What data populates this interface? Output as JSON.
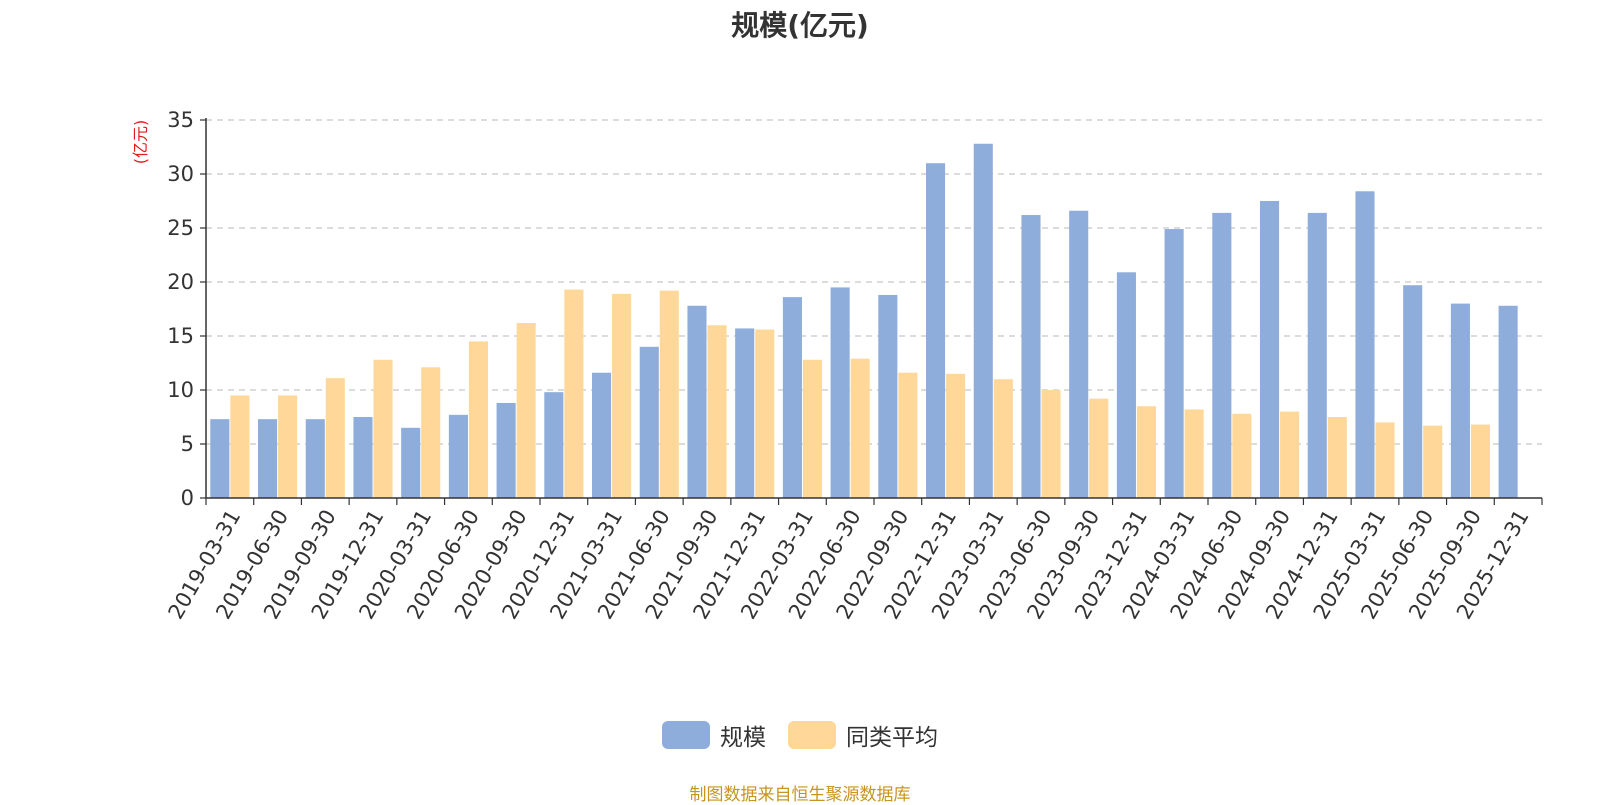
{
  "chart_data": {
    "type": "bar",
    "title": "规模(亿元)",
    "ylabel": "(亿元)",
    "xlabel": "",
    "ylim": [
      0,
      35
    ],
    "yticks": [
      0,
      5,
      10,
      15,
      20,
      25,
      30,
      35
    ],
    "grid": true,
    "legend_position": "bottom",
    "categories": [
      "2019-03-31",
      "2019-06-30",
      "2019-09-30",
      "2019-12-31",
      "2020-03-31",
      "2020-06-30",
      "2020-09-30",
      "2020-12-31",
      "2021-03-31",
      "2021-06-30",
      "2021-09-30",
      "2021-12-31",
      "2022-03-31",
      "2022-06-30",
      "2022-09-30",
      "2022-12-31",
      "2023-03-31",
      "2023-06-30",
      "2023-09-30",
      "2023-12-31",
      "2024-03-31",
      "2024-06-30",
      "2024-09-30",
      "2024-12-31",
      "2025-03-31",
      "2025-06-30",
      "2025-09-30",
      "2025-12-31"
    ],
    "series": [
      {
        "name": "规模",
        "color": "#8EADDB",
        "values": [
          7.3,
          7.3,
          7.3,
          7.5,
          6.5,
          7.7,
          8.8,
          9.8,
          11.6,
          14.0,
          17.8,
          15.7,
          18.6,
          19.5,
          18.8,
          31.0,
          32.8,
          26.2,
          26.6,
          20.9,
          24.9,
          26.4,
          27.5,
          26.4,
          28.4,
          19.7,
          18.0,
          17.8
        ]
      },
      {
        "name": "同类平均",
        "color": "#FFD899",
        "values": [
          9.5,
          9.5,
          11.1,
          12.8,
          12.1,
          14.5,
          16.2,
          19.3,
          18.9,
          19.2,
          16.0,
          15.6,
          12.8,
          12.9,
          11.6,
          11.5,
          11.0,
          10.0,
          9.2,
          8.5,
          8.2,
          7.8,
          8.0,
          7.5,
          7.0,
          6.7,
          6.8,
          null
        ]
      }
    ]
  },
  "legend": {
    "items": [
      "规模",
      "同类平均"
    ]
  },
  "source_note": "制图数据来自恒生聚源数据库"
}
